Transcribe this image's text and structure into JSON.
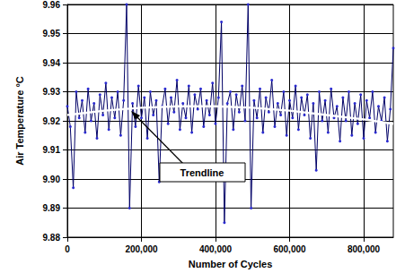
{
  "chart_data": {
    "type": "line",
    "xlabel": "Number of Cycles",
    "ylabel": "Air Temperature °C",
    "xlim": [
      0,
      880000
    ],
    "xticks": [
      0,
      {
        "value": 200000,
        "label": "200,000"
      },
      {
        "value": 400000,
        "label": "400,000"
      },
      {
        "value": 600000,
        "label": "600,000"
      },
      {
        "value": 800000,
        "label": "800,000"
      }
    ],
    "ylim": [
      9.88,
      9.96
    ],
    "yticks": [
      9.88,
      9.89,
      {
        "value": 9.9,
        "label": "9.90"
      },
      9.91,
      9.92,
      9.93,
      9.94,
      9.95,
      9.96
    ],
    "grid": true,
    "annotations": [
      {
        "text": "Trendline"
      }
    ],
    "series": [
      {
        "color": "#000066",
        "marker": "circle",
        "line_style": "solid",
        "x": [
          0,
          8000,
          16000,
          24000,
          32000,
          40000,
          48000,
          56000,
          64000,
          72000,
          80000,
          88000,
          96000,
          104000,
          112000,
          120000,
          128000,
          136000,
          144000,
          152000,
          160000,
          168000,
          176000,
          184000,
          192000,
          200000,
          208000,
          216000,
          224000,
          232000,
          240000,
          248000,
          256000,
          264000,
          272000,
          280000,
          288000,
          296000,
          304000,
          312000,
          320000,
          328000,
          336000,
          344000,
          352000,
          360000,
          368000,
          376000,
          384000,
          392000,
          400000,
          408000,
          416000,
          424000,
          432000,
          440000,
          448000,
          456000,
          464000,
          472000,
          480000,
          488000,
          496000,
          504000,
          512000,
          520000,
          528000,
          536000,
          544000,
          552000,
          560000,
          568000,
          576000,
          584000,
          592000,
          600000,
          608000,
          616000,
          624000,
          632000,
          640000,
          648000,
          656000,
          664000,
          672000,
          680000,
          688000,
          696000,
          704000,
          712000,
          720000,
          728000,
          736000,
          744000,
          752000,
          760000,
          768000,
          776000,
          784000,
          792000,
          800000,
          808000,
          816000,
          824000,
          832000,
          840000,
          848000,
          856000,
          864000,
          872000,
          880000
        ],
        "values": [
          9.925,
          9.918,
          9.897,
          9.93,
          9.921,
          9.927,
          9.916,
          9.931,
          9.92,
          9.926,
          9.914,
          9.929,
          9.922,
          9.933,
          9.917,
          9.928,
          9.921,
          9.93,
          9.915,
          9.927,
          9.96,
          9.89,
          9.926,
          9.918,
          9.932,
          9.921,
          9.928,
          9.914,
          9.93,
          9.922,
          9.927,
          9.899,
          9.925,
          9.931,
          9.919,
          9.928,
          9.923,
          9.934,
          9.917,
          9.926,
          9.921,
          9.932,
          9.916,
          9.929,
          9.924,
          9.931,
          9.918,
          9.927,
          9.922,
          9.933,
          9.919,
          9.928,
          9.954,
          9.885,
          9.926,
          9.93,
          9.917,
          9.929,
          9.923,
          9.932,
          9.92,
          9.96,
          9.89,
          9.927,
          9.921,
          9.931,
          9.916,
          9.928,
          9.923,
          9.934,
          9.918,
          9.926,
          9.922,
          9.93,
          9.915,
          9.927,
          9.921,
          9.932,
          9.917,
          9.928,
          9.922,
          9.929,
          9.914,
          9.926,
          9.903,
          9.93,
          9.92,
          9.927,
          9.916,
          9.931,
          9.921,
          9.925,
          9.913,
          9.928,
          9.92,
          9.93,
          9.915,
          9.926,
          9.919,
          9.929,
          9.914,
          9.927,
          9.921,
          9.93,
          9.916,
          9.925,
          9.92,
          9.928,
          9.913,
          9.924,
          9.945
        ]
      },
      {
        "color": "#ffffff",
        "marker": "none",
        "line_style": "solid",
        "x": [
          0,
          100000,
          200000,
          300000,
          400000,
          500000,
          600000,
          700000,
          800000,
          880000
        ],
        "values": [
          9.922,
          9.9235,
          9.9245,
          9.925,
          9.925,
          9.9245,
          9.9235,
          9.922,
          9.9205,
          9.919
        ]
      }
    ]
  }
}
